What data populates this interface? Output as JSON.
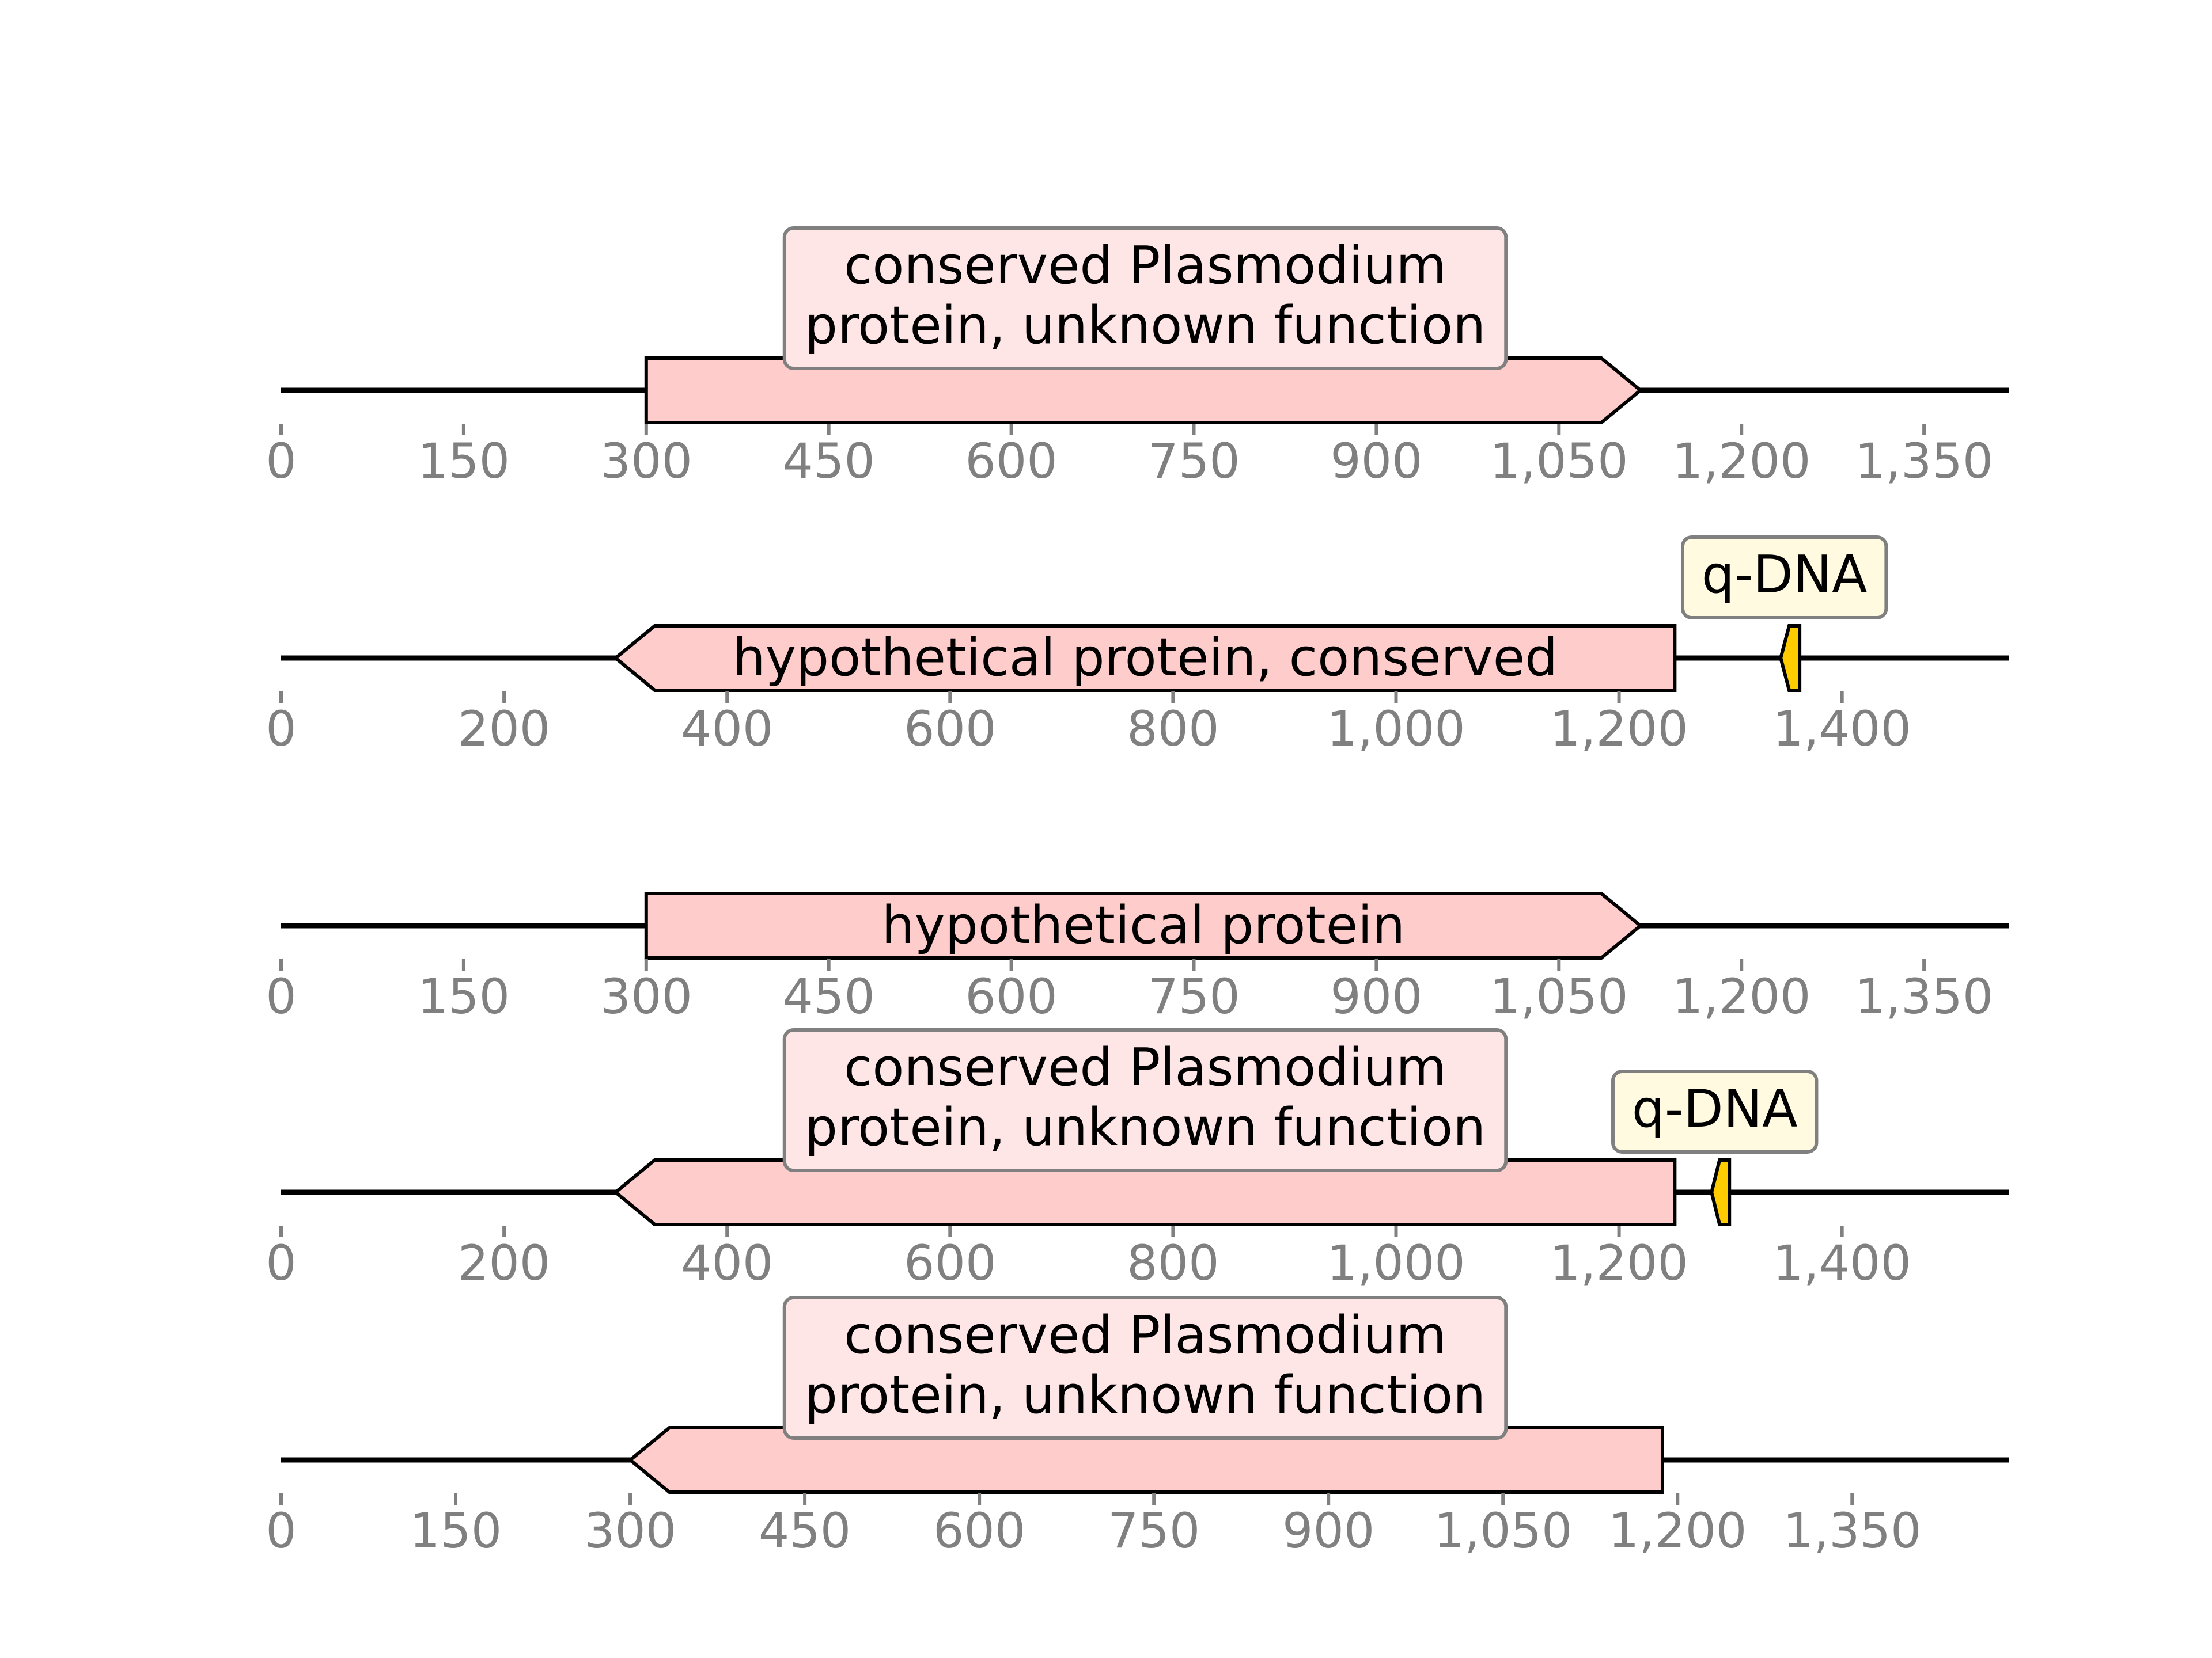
{
  "colors": {
    "backbone": "#000000",
    "cds_fill": "#ffcccc",
    "cds_label_box": "#ffe6e6",
    "misc_fill": "#ffcc00",
    "misc_label_box": "#fffae0",
    "label_border": "#808080",
    "axis_text": "#808080"
  },
  "tracks": [
    {
      "id": "track-1",
      "sequence_length": 1420,
      "ticks": [
        0,
        150,
        300,
        450,
        600,
        750,
        900,
        1050,
        1200,
        1350
      ],
      "tick_labels": [
        "0",
        "150",
        "300",
        "450",
        "600",
        "750",
        "900",
        "1,050",
        "1,200",
        "1,350"
      ],
      "features": [
        {
          "kind": "cds",
          "start": 300,
          "end": 1117,
          "strand": 1,
          "label": "conserved Plasmodium protein, unknown function",
          "label_lines": [
            "conserved Plasmodium",
            "protein, unknown function"
          ],
          "label_box": true
        }
      ]
    },
    {
      "id": "track-2",
      "sequence_length": 1550,
      "ticks": [
        0,
        200,
        400,
        600,
        800,
        1000,
        1200,
        1400
      ],
      "tick_labels": [
        "0",
        "200",
        "400",
        "600",
        "800",
        "1,000",
        "1,200",
        "1,400"
      ],
      "features": [
        {
          "kind": "cds",
          "start": 300,
          "end": 1250,
          "strand": -1,
          "label": "hypothetical protein, conserved",
          "label_lines": [
            "hypothetical protein, conserved"
          ],
          "label_box": false
        },
        {
          "kind": "misc",
          "start": 1345,
          "end": 1362,
          "strand": -1,
          "label": "q-DNA",
          "label_lines": [
            "q-DNA"
          ],
          "label_box": true
        }
      ]
    },
    {
      "id": "track-3",
      "sequence_length": 1420,
      "ticks": [
        0,
        150,
        300,
        450,
        600,
        750,
        900,
        1050,
        1200,
        1350
      ],
      "tick_labels": [
        "0",
        "150",
        "300",
        "450",
        "600",
        "750",
        "900",
        "1,050",
        "1,200",
        "1,350"
      ],
      "features": [
        {
          "kind": "cds",
          "start": 300,
          "end": 1117,
          "strand": 1,
          "label": "hypothetical protein",
          "label_lines": [
            "hypothetical protein"
          ],
          "label_box": false
        }
      ]
    },
    {
      "id": "track-4",
      "sequence_length": 1550,
      "ticks": [
        0,
        200,
        400,
        600,
        800,
        1000,
        1200,
        1400
      ],
      "tick_labels": [
        "0",
        "200",
        "400",
        "600",
        "800",
        "1,000",
        "1,200",
        "1,400"
      ],
      "features": [
        {
          "kind": "cds",
          "start": 300,
          "end": 1250,
          "strand": -1,
          "label": "conserved Plasmodium protein, unknown function",
          "label_lines": [
            "conserved Plasmodium",
            "protein, unknown function"
          ],
          "label_box": true
        },
        {
          "kind": "misc",
          "start": 1283,
          "end": 1299,
          "strand": -1,
          "label": "q-DNA",
          "label_lines": [
            "q-DNA"
          ],
          "label_box": true
        }
      ]
    },
    {
      "id": "track-5",
      "sequence_length": 1485,
      "ticks": [
        0,
        150,
        300,
        450,
        600,
        750,
        900,
        1050,
        1200,
        1350
      ],
      "tick_labels": [
        "0",
        "150",
        "300",
        "450",
        "600",
        "750",
        "900",
        "1,050",
        "1,200",
        "1,350"
      ],
      "features": [
        {
          "kind": "cds",
          "start": 300,
          "end": 1187,
          "strand": -1,
          "label": "conserved Plasmodium protein, unknown function",
          "label_lines": [
            "conserved Plasmodium",
            "protein, unknown function"
          ],
          "label_box": true
        }
      ]
    }
  ]
}
